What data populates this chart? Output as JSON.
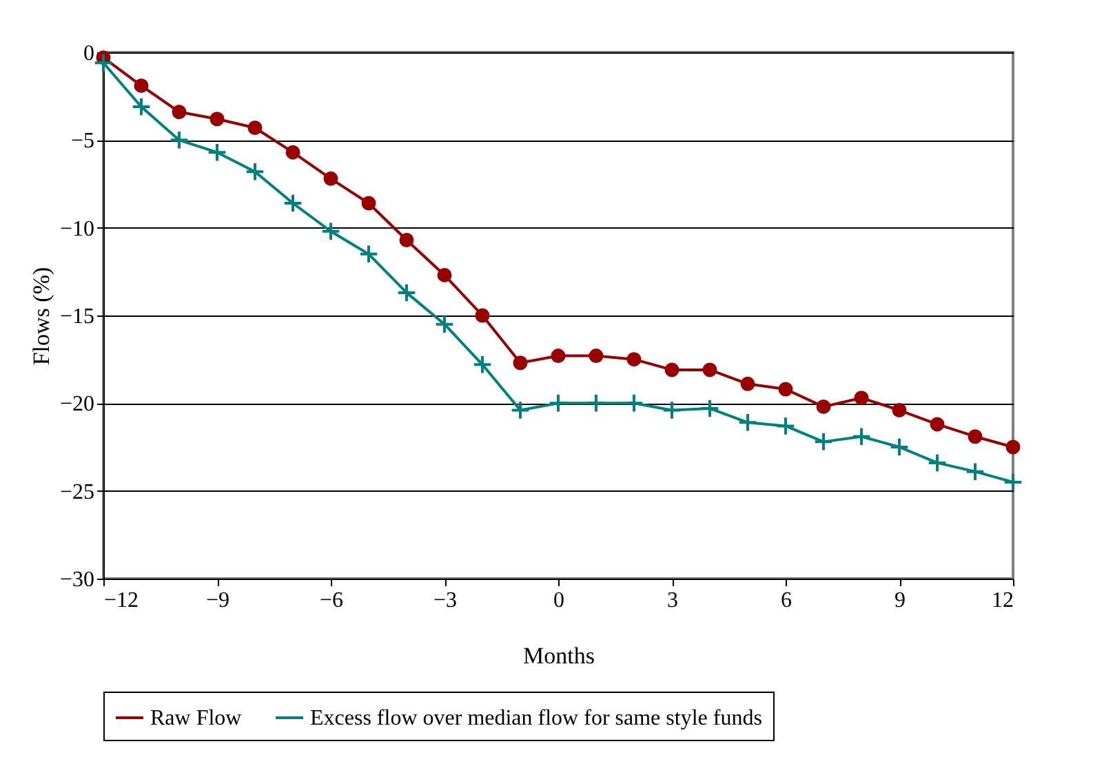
{
  "chart_data": {
    "type": "line",
    "xlabel": "Months",
    "ylabel": "Flows (%)",
    "x": [
      -12,
      -11,
      -10,
      -9,
      -8,
      -7,
      -6,
      -5,
      -4,
      -3,
      -2,
      -1,
      0,
      1,
      2,
      3,
      4,
      5,
      6,
      7,
      8,
      9,
      10,
      11,
      12
    ],
    "series": [
      {
        "name": "Raw Flow",
        "color": "#990000",
        "marker": "circle",
        "values": [
          -0.3,
          -1.9,
          -3.4,
          -3.8,
          -4.3,
          -5.7,
          -7.2,
          -8.6,
          -10.7,
          -12.7,
          -15.0,
          -17.7,
          -17.3,
          -17.3,
          -17.5,
          -18.1,
          -18.1,
          -18.9,
          -19.2,
          -20.2,
          -19.7,
          -20.4,
          -21.2,
          -21.9,
          -22.5
        ]
      },
      {
        "name": "Excess flow over median flow for same style funds",
        "color": "#008080",
        "marker": "cross",
        "values": [
          -0.6,
          -3.1,
          -5.0,
          -5.7,
          -6.8,
          -8.6,
          -10.2,
          -11.5,
          -13.7,
          -15.5,
          -17.8,
          -20.4,
          -20.0,
          -20.0,
          -20.0,
          -20.4,
          -20.3,
          -21.1,
          -21.3,
          -22.2,
          -21.9,
          -22.5,
          -23.4,
          -23.9,
          -24.5
        ]
      }
    ],
    "xlim": [
      -12,
      12
    ],
    "xticks": [
      -12,
      -9,
      -6,
      -3,
      0,
      3,
      6,
      9,
      12
    ],
    "ylim": [
      -30,
      0
    ],
    "yticks": [
      -30,
      -25,
      -20,
      -15,
      -10,
      -5,
      0
    ],
    "grid": "y",
    "legend": "bottom",
    "line_style": "solid"
  }
}
